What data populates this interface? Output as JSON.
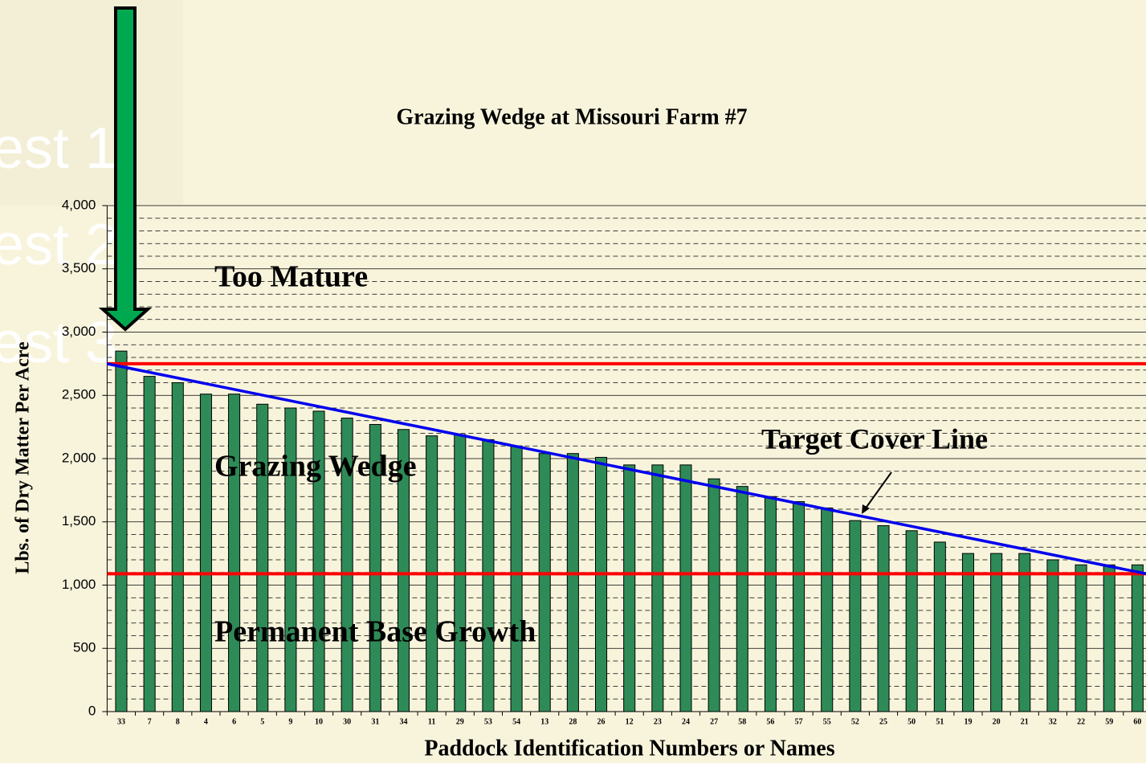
{
  "chart_data": {
    "type": "bar",
    "title": "Grazing Wedge at Missouri Farm #7",
    "x_label": "Paddock Identification Numbers or Names",
    "y_label": "Lbs. of Dry Matter Per Acre",
    "categories": [
      "33",
      "7",
      "8",
      "4",
      "6",
      "5",
      "9",
      "10",
      "30",
      "31",
      "34",
      "11",
      "29",
      "53",
      "54",
      "13",
      "28",
      "26",
      "12",
      "23",
      "24",
      "27",
      "58",
      "56",
      "57",
      "55",
      "52",
      "25",
      "50",
      "51",
      "19",
      "20",
      "21",
      "32",
      "22",
      "59",
      "60"
    ],
    "values": [
      2850,
      2650,
      2600,
      2510,
      2510,
      2430,
      2400,
      2375,
      2320,
      2270,
      2230,
      2180,
      2190,
      2150,
      2100,
      2040,
      2040,
      2010,
      1950,
      1950,
      1950,
      1840,
      1780,
      1700,
      1660,
      1610,
      1510,
      1470,
      1430,
      1340,
      1250,
      1250,
      1250,
      1200,
      1160,
      1160,
      1160
    ],
    "color": "#2e8b57",
    "ylim": [
      0,
      4000
    ],
    "yticks": [
      0,
      500,
      {
        "value": 1000,
        "label": "1,000"
      },
      {
        "value": 1500,
        "label": "1,500"
      },
      {
        "value": 2000,
        "label": "2,000"
      },
      {
        "value": 2500,
        "label": "2,500"
      },
      {
        "value": 3000,
        "label": "3,000"
      },
      {
        "value": 3500,
        "label": "3,500"
      },
      {
        "value": 4000,
        "label": "4,000"
      }
    ],
    "grid": true,
    "threshold_lines": {
      "color": "#ff0000",
      "values": [
        2750,
        1090
      ]
    },
    "target_cover_line": {
      "color": "#0000ee",
      "values": [
        2750,
        1090
      ]
    },
    "annotations": [
      "Too Mature",
      "Grazing Wedge",
      "Permanent Base Growth",
      "Target Cover Line"
    ]
  },
  "background_texts": [
    "est 1",
    "est 2",
    "est 3"
  ]
}
